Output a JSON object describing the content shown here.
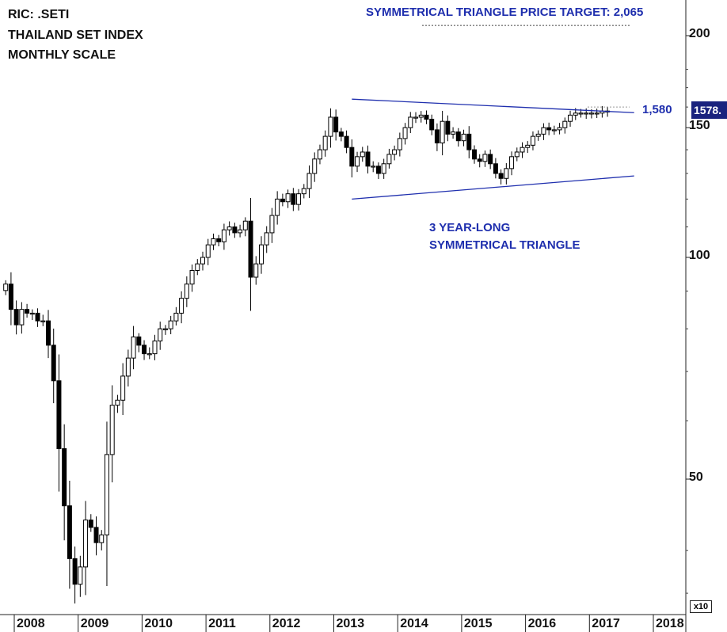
{
  "header": {
    "line1": "RIC: .SETI",
    "line2": "THAILAND SET INDEX",
    "line3": "MONTHLY SCALE"
  },
  "annotations": {
    "target": "SYMMETRICAL TRIANGLE PRICE TARGET: 2,065",
    "pattern_line1": "3 YEAR-LONG",
    "pattern_line2": "SYMMETRICAL TRIANGLE",
    "level": "1,580",
    "last_price": "1578.",
    "scale_multiplier": "x10"
  },
  "colors": {
    "annotation": "#1f2fae",
    "price_box": "#1a237e",
    "candle": "#000000"
  },
  "chart_data": {
    "type": "candlestick",
    "scale": "log",
    "y_unit": "x10",
    "ylim": [
      30,
      220
    ],
    "y_ticks": [
      {
        "value": 200,
        "label": "200"
      },
      {
        "value": 150,
        "label": "150"
      },
      {
        "value": 100,
        "label": "100"
      },
      {
        "value": 50,
        "label": "50"
      }
    ],
    "x_labels": [
      "2008",
      "2009",
      "2010",
      "2011",
      "2012",
      "2013",
      "2014",
      "2015",
      "2016",
      "2017",
      "2018"
    ],
    "x_start": "2007-10",
    "x_end": "2018-05",
    "closes": [
      92,
      85,
      81,
      85,
      84,
      84,
      82,
      82,
      76,
      68,
      55,
      46,
      39,
      36,
      38,
      44,
      43,
      41,
      42,
      54,
      63,
      64,
      69,
      73,
      78,
      76,
      74,
      74,
      77,
      80,
      80,
      82,
      84,
      88,
      92,
      96,
      98,
      100,
      104,
      106,
      105,
      109,
      110,
      108,
      109,
      112,
      94,
      98,
      104,
      108,
      114,
      120,
      119,
      122,
      118,
      122,
      124,
      130,
      136,
      140,
      146,
      155,
      148,
      146,
      141,
      133,
      137,
      139,
      133,
      133,
      130,
      134,
      138,
      140,
      145,
      150,
      155,
      155,
      156,
      154,
      149,
      143,
      153,
      147,
      148,
      144,
      147,
      140,
      136,
      135,
      138,
      134,
      130,
      128,
      132,
      137,
      139,
      141,
      142,
      146,
      147,
      150,
      149,
      149,
      150,
      153,
      156,
      157,
      157,
      157,
      157,
      157,
      158,
      158
    ],
    "series": [
      {
        "name": "THAILAND SET INDEX",
        "kind": "monthly candles"
      }
    ],
    "trendlines": [
      {
        "name": "resistance",
        "from": [
          "2013-03",
          164
        ],
        "to": [
          "2017-08",
          157.2
        ]
      },
      {
        "name": "support",
        "from": [
          "2013-03",
          120
        ],
        "to": [
          "2017-08",
          129
        ]
      }
    ],
    "levels": [
      {
        "value": 158,
        "label": "1,580"
      },
      {
        "value": 206.5,
        "label": "2,065",
        "style": "dotted"
      }
    ]
  }
}
